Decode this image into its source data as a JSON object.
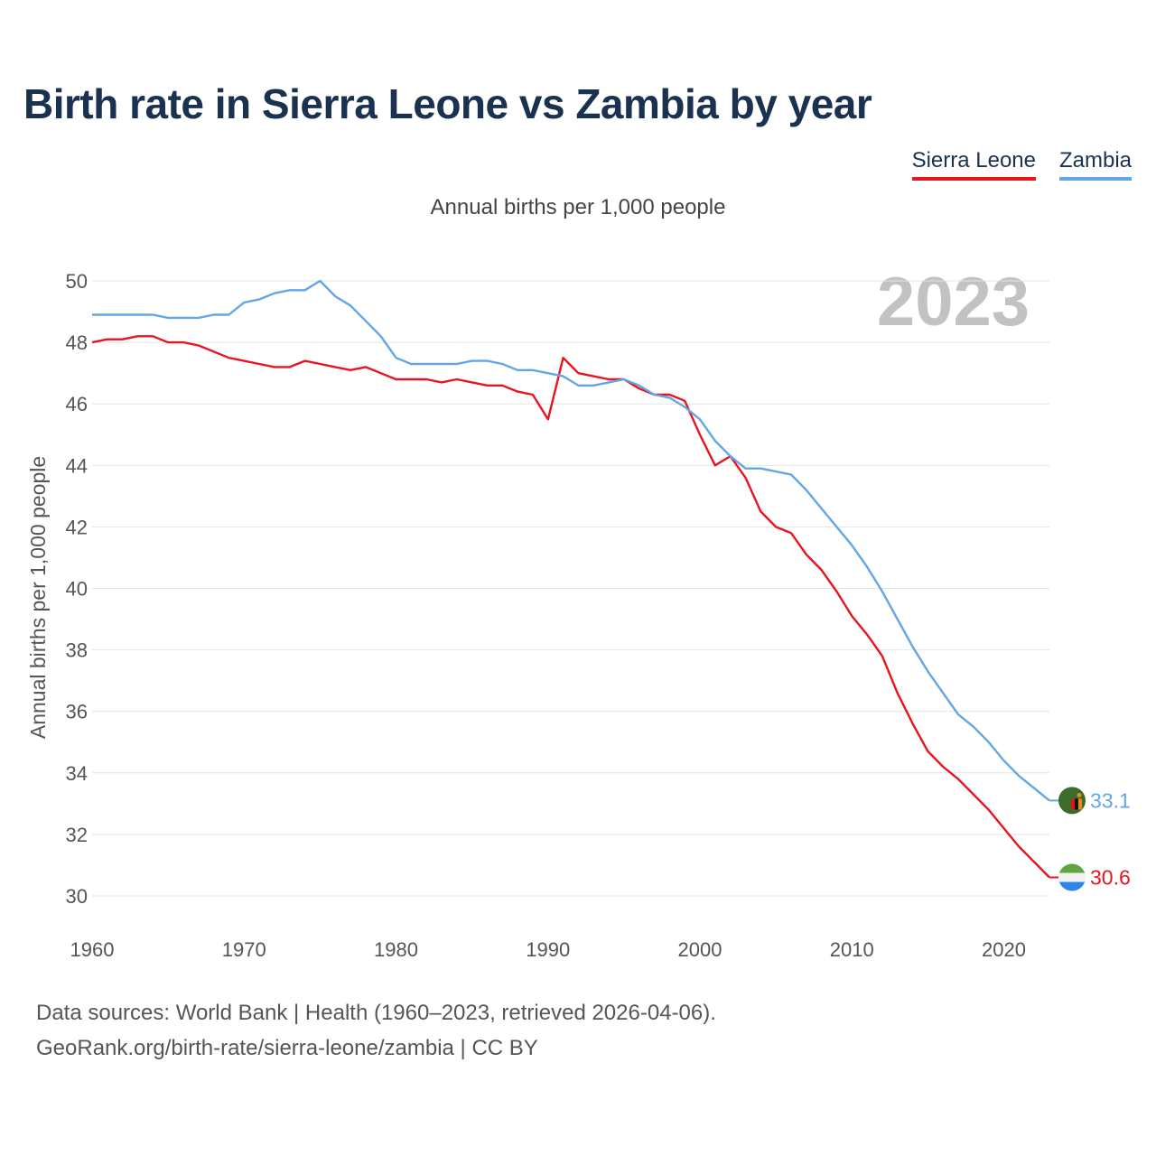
{
  "chart_data": {
    "type": "line",
    "title": "Birth rate in Sierra Leone vs Zambia by year",
    "subtitle": "Annual births per 1,000 people",
    "ylabel": "Annual births per 1,000 people",
    "xlabel": "",
    "year_label": "2023",
    "xlim": [
      1960,
      2023
    ],
    "ylim": [
      29,
      51
    ],
    "x_ticks": [
      1960,
      1970,
      1980,
      1990,
      2000,
      2010,
      2020
    ],
    "y_ticks": [
      30,
      32,
      34,
      36,
      38,
      40,
      42,
      44,
      46,
      48,
      50
    ],
    "grid": true,
    "legend_position": "top-right",
    "x": [
      1960,
      1961,
      1962,
      1963,
      1964,
      1965,
      1966,
      1967,
      1968,
      1969,
      1970,
      1971,
      1972,
      1973,
      1974,
      1975,
      1976,
      1977,
      1978,
      1979,
      1980,
      1981,
      1982,
      1983,
      1984,
      1985,
      1986,
      1987,
      1988,
      1989,
      1990,
      1991,
      1992,
      1993,
      1994,
      1995,
      1996,
      1997,
      1998,
      1999,
      2000,
      2001,
      2002,
      2003,
      2004,
      2005,
      2006,
      2007,
      2008,
      2009,
      2010,
      2011,
      2012,
      2013,
      2014,
      2015,
      2016,
      2017,
      2018,
      2019,
      2020,
      2021,
      2022,
      2023
    ],
    "series": [
      {
        "name": "Sierra Leone",
        "color": "#e8141e",
        "end_label": "30.6",
        "values": [
          48.0,
          48.1,
          48.1,
          48.2,
          48.2,
          48.0,
          48.0,
          47.9,
          47.7,
          47.5,
          47.4,
          47.3,
          47.2,
          47.2,
          47.4,
          47.3,
          47.2,
          47.1,
          47.2,
          47.0,
          46.8,
          46.8,
          46.8,
          46.7,
          46.8,
          46.7,
          46.6,
          46.6,
          46.4,
          46.3,
          45.5,
          47.5,
          47.0,
          46.9,
          46.8,
          46.8,
          46.5,
          46.3,
          46.3,
          46.1,
          45.0,
          44.0,
          44.3,
          43.6,
          42.5,
          42.0,
          41.8,
          41.1,
          40.6,
          39.9,
          39.1,
          38.5,
          37.8,
          36.6,
          35.6,
          34.7,
          34.2,
          33.8,
          33.3,
          32.8,
          32.2,
          31.6,
          31.1,
          30.6
        ]
      },
      {
        "name": "Zambia",
        "color": "#63a6e6",
        "end_label": "33.1",
        "values": [
          48.9,
          48.9,
          48.9,
          48.9,
          48.9,
          48.8,
          48.8,
          48.8,
          48.9,
          48.9,
          49.3,
          49.4,
          49.6,
          49.7,
          49.7,
          50.0,
          49.5,
          49.2,
          48.7,
          48.2,
          47.5,
          47.3,
          47.3,
          47.3,
          47.3,
          47.4,
          47.4,
          47.3,
          47.1,
          47.1,
          47.0,
          46.9,
          46.6,
          46.6,
          46.7,
          46.8,
          46.6,
          46.3,
          46.2,
          45.9,
          45.5,
          44.8,
          44.3,
          43.9,
          43.9,
          43.8,
          43.7,
          43.2,
          42.6,
          42.0,
          41.4,
          40.7,
          39.9,
          39.0,
          38.1,
          37.3,
          36.6,
          35.9,
          35.5,
          35.0,
          34.4,
          33.9,
          33.5,
          33.1
        ]
      }
    ]
  },
  "footer": {
    "source": "Data sources: World Bank | Health (1960–2023, retrieved 2026-04-06).",
    "credit": "GeoRank.org/birth-rate/sierra-leone/zambia | CC BY"
  }
}
